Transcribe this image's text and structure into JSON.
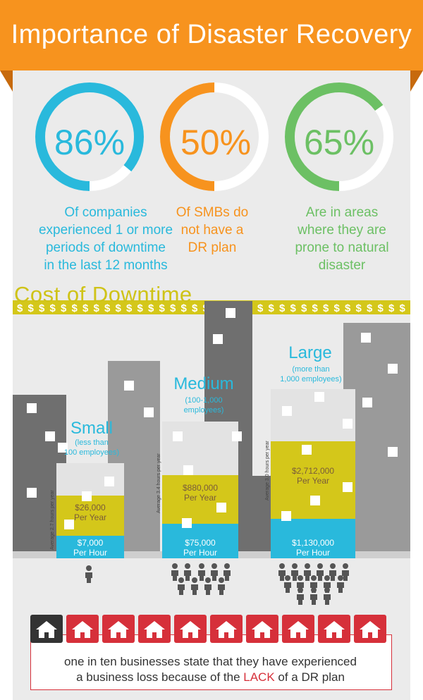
{
  "title": "Importance of Disaster Recovery",
  "colors": {
    "banner": "#f7931e",
    "blue": "#29b9dc",
    "orange": "#f7931e",
    "green": "#6cc064",
    "gold": "#d4c71a",
    "red": "#d6303a",
    "dark": "#555555"
  },
  "stats": [
    {
      "value": 86,
      "label": "86%",
      "color": "#29b9dc",
      "caption_lines": [
        "Of companies",
        "experienced 1 or more",
        "periods of downtime",
        "in the last 12 months"
      ]
    },
    {
      "value": 50,
      "label": "50%",
      "color": "#f7931e",
      "caption_lines": [
        "Of SMBs do",
        "not have a",
        "DR plan"
      ]
    },
    {
      "value": 65,
      "label": "65%",
      "color": "#6cc064",
      "caption_lines": [
        "Are in areas",
        "where they are",
        "prone to natural",
        "disaster"
      ]
    }
  ],
  "cost": {
    "title": "Cost of Downtime",
    "dollar": "$",
    "small": {
      "label": "Small",
      "sub_lines": [
        "(less than",
        "100 employees)"
      ],
      "per_year": "$26,000",
      "per_year_label": "Per Year",
      "per_hour": "$7,000",
      "per_hour_label": "Per Hour",
      "hours": "Average 2.7 hours per year"
    },
    "medium": {
      "label": "Medium",
      "sub_lines": [
        "(100-1,000",
        "employees)"
      ],
      "per_year": "$880,000",
      "per_year_label": "Per Year",
      "per_hour": "$75,000",
      "per_hour_label": "Per Hour",
      "hours": "Average 3.4 hours per year"
    },
    "large": {
      "label": "Large",
      "sub_lines": [
        "(more than",
        "1,000 employees)"
      ],
      "per_year": "$2,712,000",
      "per_year_label": "Per Year",
      "per_hour": "$1,130,000",
      "per_hour_label": "Per Hour",
      "hours": "Average 3.0 hours per year"
    }
  },
  "bottom": {
    "text_line1": "one in ten businesses state that they have experienced",
    "text_line2_pre": "a business loss because of the ",
    "text_lack": "LACK",
    "text_line2_post": " of a DR plan"
  }
}
